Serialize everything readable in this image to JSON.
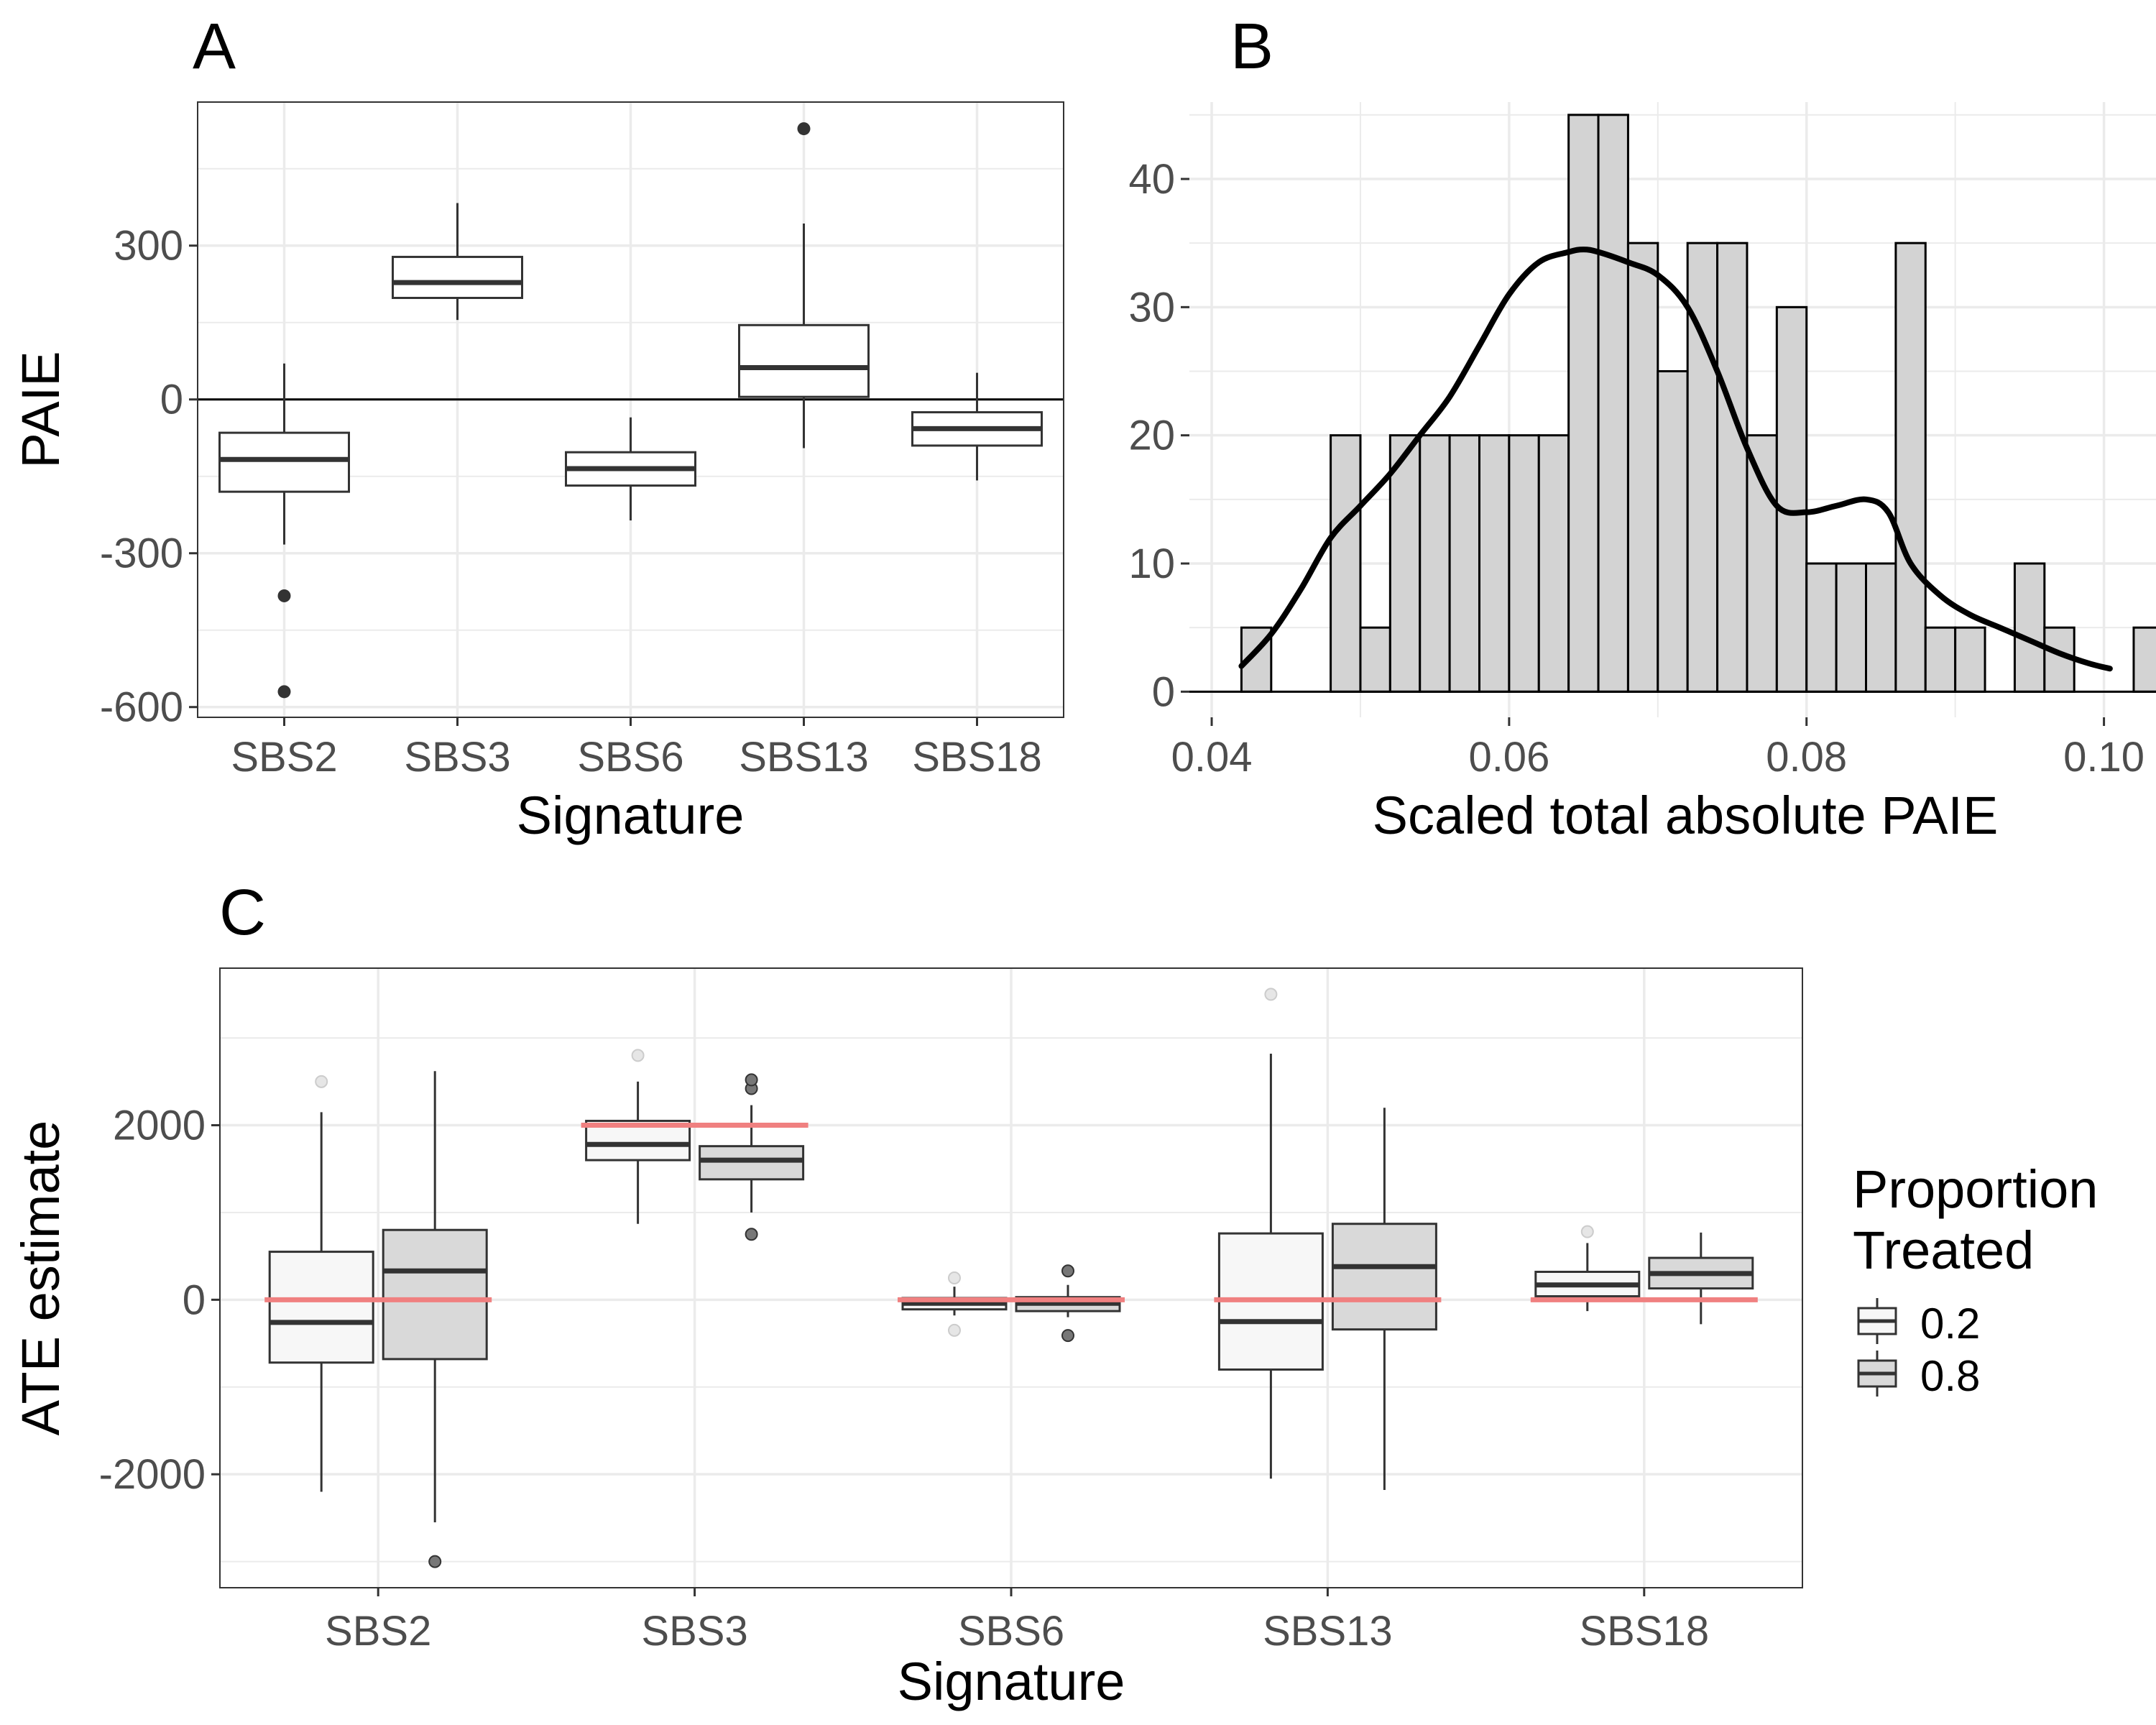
{
  "colors": {
    "grid": "#ebebeb",
    "panel_border": "#333333",
    "box_line": "#333333",
    "hist_fill": "#d3d3d3",
    "true_value_line": "#f08080",
    "group_0.2_fill": "#f7f7f7",
    "group_0.8_fill": "#d9d9d9"
  },
  "chart_data": [
    {
      "id": "A",
      "type": "box",
      "panel_label": "A",
      "xlabel": "Signature",
      "ylabel": "PAIE",
      "categories": [
        "SBS2",
        "SBS3",
        "SBS6",
        "SBS13",
        "SBS18"
      ],
      "yticks": [
        -600,
        -300,
        0,
        300
      ],
      "ylim": [
        -620,
        580
      ],
      "hline": 0,
      "boxes": [
        {
          "category": "SBS2",
          "whisker_low": -283,
          "q1": -180,
          "median": -117,
          "q3": -65,
          "whisker_high": 70,
          "outliers": [
            -383,
            -570
          ]
        },
        {
          "category": "SBS3",
          "whisker_low": 155,
          "q1": 198,
          "median": 228,
          "q3": 278,
          "whisker_high": 383,
          "outliers": []
        },
        {
          "category": "SBS6",
          "whisker_low": -236,
          "q1": -168,
          "median": -135,
          "q3": -103,
          "whisker_high": -35,
          "outliers": []
        },
        {
          "category": "SBS13",
          "whisker_low": -95,
          "q1": 5,
          "median": 62,
          "q3": 145,
          "whisker_high": 343,
          "outliers": [
            528
          ]
        },
        {
          "category": "SBS18",
          "whisker_low": -158,
          "q1": -90,
          "median": -57,
          "q3": -25,
          "whisker_high": 52,
          "outliers": []
        }
      ]
    },
    {
      "id": "B",
      "type": "histogram",
      "panel_label": "B",
      "xlabel": "Scaled total absolute PAIE",
      "ylabel": "",
      "xlim": [
        0.0385,
        0.1035
      ],
      "ylim": [
        -2,
        46
      ],
      "xticks": [
        "0.04",
        "0.06",
        "0.08",
        "0.10"
      ],
      "yticks": [
        0,
        10,
        20,
        30,
        40
      ],
      "bin_start": 0.042,
      "bin_width": 0.002,
      "counts": [
        5,
        0,
        0,
        20,
        5,
        20,
        20,
        20,
        20,
        20,
        20,
        45,
        45,
        35,
        25,
        35,
        35,
        20,
        30,
        10,
        10,
        10,
        35,
        5,
        5,
        0,
        10,
        5,
        0,
        0,
        5
      ],
      "density_curve": {
        "x": [
          0.042,
          0.044,
          0.046,
          0.048,
          0.05,
          0.052,
          0.054,
          0.056,
          0.058,
          0.06,
          0.062,
          0.064,
          0.065,
          0.066,
          0.068,
          0.07,
          0.072,
          0.074,
          0.076,
          0.078,
          0.08,
          0.082,
          0.084,
          0.0855,
          0.087,
          0.089,
          0.091,
          0.093,
          0.095,
          0.097,
          0.099,
          0.1004
        ],
        "y": [
          2,
          4.5,
          8,
          12,
          14.5,
          17,
          20,
          23,
          27,
          31,
          33.5,
          34.3,
          34.5,
          34.3,
          33.5,
          32.5,
          30,
          25,
          19,
          14.5,
          14,
          14.5,
          15,
          14,
          10,
          7.5,
          6,
          5,
          4,
          3,
          2.2,
          1.8
        ]
      }
    },
    {
      "id": "C",
      "type": "box",
      "panel_label": "C",
      "xlabel": "Signature",
      "ylabel": "ATE estimate",
      "categories": [
        "SBS2",
        "SBS3",
        "SBS6",
        "SBS13",
        "SBS18"
      ],
      "yticks": [
        -2000,
        0,
        2000
      ],
      "ylim": [
        -3300,
        3800
      ],
      "legend": {
        "title": [
          "Proportion",
          "Treated"
        ],
        "entries": [
          "0.2",
          "0.8"
        ],
        "position": "right"
      },
      "true_values": [
        0,
        2000,
        0,
        0,
        0
      ],
      "series": [
        {
          "name": "0.2",
          "boxes": [
            {
              "category": "SBS2",
              "whisker_low": -2200,
              "q1": -720,
              "median": -260,
              "q3": 550,
              "whisker_high": 2150,
              "outliers": [
                2500
              ]
            },
            {
              "category": "SBS3",
              "whisker_low": 870,
              "q1": 1600,
              "median": 1780,
              "q3": 2050,
              "whisker_high": 2500,
              "outliers": [
                2800
              ]
            },
            {
              "category": "SBS6",
              "whisker_low": -180,
              "q1": -110,
              "median": -40,
              "q3": 20,
              "whisker_high": 150,
              "outliers": [
                250,
                -350
              ]
            },
            {
              "category": "SBS13",
              "whisker_low": -2050,
              "q1": -800,
              "median": -250,
              "q3": 760,
              "whisker_high": 2820,
              "outliers": [
                3500
              ]
            },
            {
              "category": "SBS18",
              "whisker_low": -130,
              "q1": 40,
              "median": 170,
              "q3": 320,
              "whisker_high": 650,
              "outliers": [
                780
              ]
            }
          ]
        },
        {
          "name": "0.8",
          "boxes": [
            {
              "category": "SBS2",
              "whisker_low": -2550,
              "q1": -680,
              "median": 330,
              "q3": 800,
              "whisker_high": 2620,
              "outliers": [
                -3000
              ]
            },
            {
              "category": "SBS3",
              "whisker_low": 1000,
              "q1": 1380,
              "median": 1600,
              "q3": 1760,
              "whisker_high": 2230,
              "outliers": [
                750,
                2420,
                2520
              ]
            },
            {
              "category": "SBS6",
              "whisker_low": -200,
              "q1": -130,
              "median": -40,
              "q3": 30,
              "whisker_high": 170,
              "outliers": [
                330,
                -410
              ]
            },
            {
              "category": "SBS13",
              "whisker_low": -2180,
              "q1": -340,
              "median": 380,
              "q3": 870,
              "whisker_high": 2200,
              "outliers": []
            },
            {
              "category": "SBS18",
              "whisker_low": -280,
              "q1": 130,
              "median": 300,
              "q3": 480,
              "whisker_high": 770,
              "outliers": []
            }
          ]
        }
      ]
    }
  ]
}
